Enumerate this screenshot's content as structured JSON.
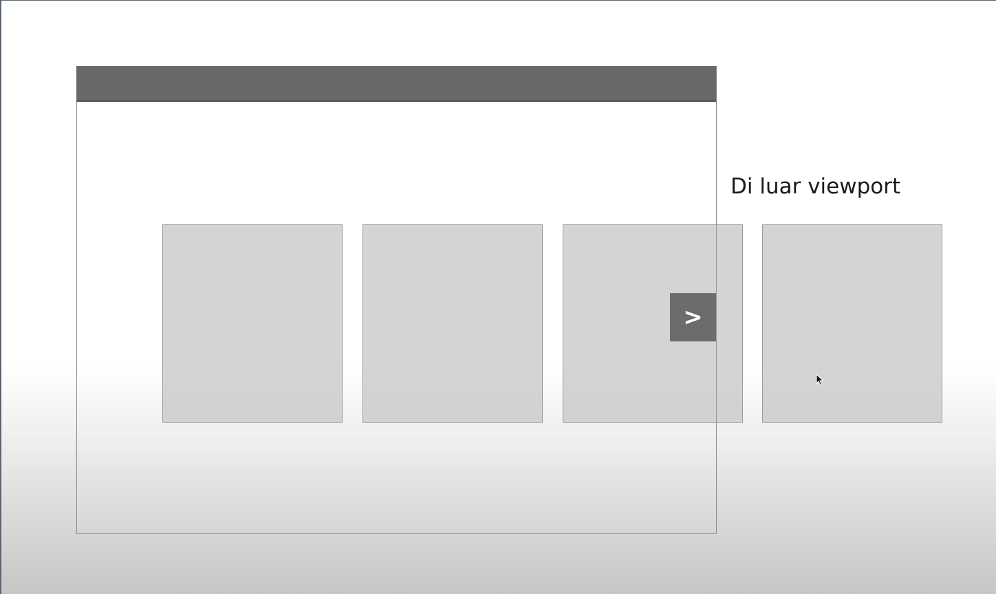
{
  "diagram": {
    "outside_label": "Di luar viewport",
    "next_button_label": ">",
    "cards": [
      {
        "id": "card-1"
      },
      {
        "id": "card-2"
      },
      {
        "id": "card-3"
      },
      {
        "id": "card-4"
      }
    ]
  },
  "colors": {
    "topbar": "#696969",
    "card_fill": "#cdcdcd",
    "button_fill": "#6c6c6c",
    "frame_border": "#8e8e8e"
  },
  "icons": {
    "cursor": "mouse-pointer-icon"
  }
}
